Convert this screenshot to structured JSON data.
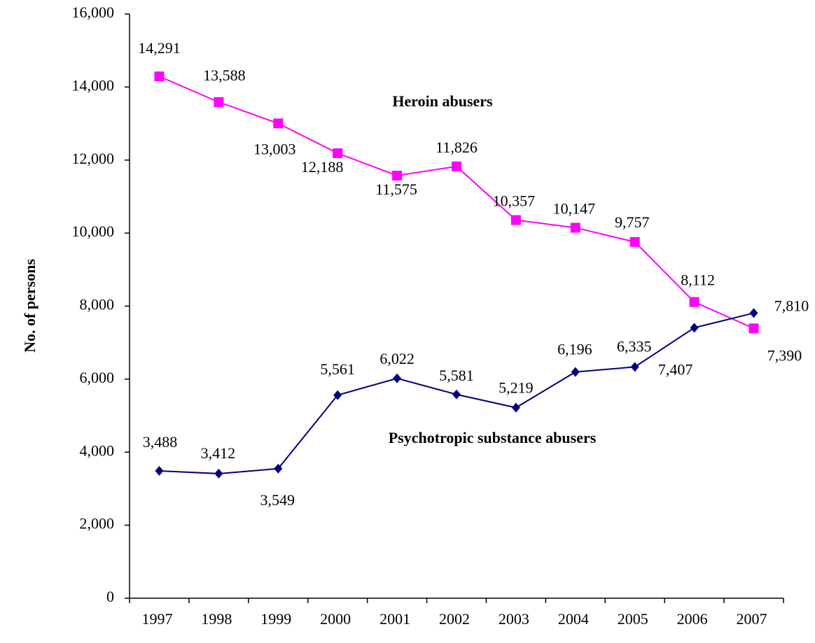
{
  "chart_data": {
    "type": "line",
    "y_label": "No. of persons",
    "categories": [
      "1997",
      "1998",
      "1999",
      "2000",
      "2001",
      "2002",
      "2003",
      "2004",
      "2005",
      "2006",
      "2007"
    ],
    "series": [
      {
        "name": "Heroin abusers",
        "color": "#ff00ff",
        "marker": "square",
        "values": [
          14291,
          13588,
          13003,
          12188,
          11575,
          11826,
          10357,
          10147,
          9757,
          8112,
          7390
        ],
        "value_labels": [
          "14,291",
          "13,588",
          "13,003",
          "12,188",
          "11,575",
          "11,826",
          "10,357",
          "10,147",
          "9,757",
          "8,112",
          "7,390"
        ]
      },
      {
        "name": "Psychotropic substance abusers",
        "color": "#000080",
        "marker": "diamond",
        "values": [
          3488,
          3412,
          3549,
          5561,
          6022,
          5581,
          5219,
          6196,
          6335,
          7407,
          7810
        ],
        "value_labels": [
          "3,488",
          "3,412",
          "3,549",
          "5,561",
          "6,022",
          "5,581",
          "5,219",
          "6,196",
          "6,335",
          "7,407",
          "7,810"
        ]
      }
    ],
    "ylim": [
      0,
      16000
    ],
    "yticks": [
      0,
      {
        "value": 2000,
        "label": "2,000"
      },
      {
        "value": 4000,
        "label": "4,000"
      },
      {
        "value": 6000,
        "label": "6,000"
      },
      {
        "value": 8000,
        "label": "8,000"
      },
      {
        "value": 10000,
        "label": "10,000"
      },
      {
        "value": 12000,
        "label": "12,000"
      },
      {
        "value": 14000,
        "label": "14,000"
      },
      {
        "value": 16000,
        "label": "16,000"
      }
    ],
    "grid": false
  }
}
